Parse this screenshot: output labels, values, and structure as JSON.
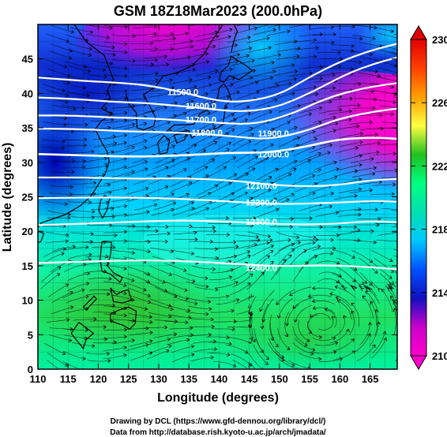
{
  "title": "GSM 18Z18Mar2023 (200.0hPa)",
  "xlabel": "Longitude (degrees)",
  "ylabel": "Latitude (degrees)",
  "x_ticks": [
    "110",
    "115",
    "120",
    "125",
    "130",
    "135",
    "140",
    "145",
    "150",
    "155",
    "160",
    "165"
  ],
  "y_ticks": [
    "0",
    "5",
    "10",
    "15",
    "20",
    "25",
    "30",
    "35",
    "40",
    "45"
  ],
  "colorbar": {
    "labels": [
      "210",
      "214",
      "218",
      "222",
      "226",
      "230"
    ],
    "colors": [
      "#ff00cc",
      "#cc00cc",
      "#1010c0",
      "#0050ff",
      "#00c8ff",
      "#00e0b0",
      "#00ff80",
      "#20c020",
      "#ffff40",
      "#ffa000",
      "#ff4000",
      "#e00000"
    ]
  },
  "contour_labels": [
    {
      "text": "11500.0",
      "lon": 134,
      "lat": 40.2
    },
    {
      "text": "11600.0",
      "lon": 137,
      "lat": 38.2
    },
    {
      "text": "11700.0",
      "lon": 137,
      "lat": 36.2
    },
    {
      "text": "11800.0",
      "lon": 138,
      "lat": 34.3
    },
    {
      "text": "11900.0",
      "lon": 149,
      "lat": 34.2
    },
    {
      "text": "12000.0",
      "lon": 149,
      "lat": 31.2
    },
    {
      "text": "12100.0",
      "lon": 147,
      "lat": 26.6
    },
    {
      "text": "12200.0",
      "lon": 147,
      "lat": 24.2
    },
    {
      "text": "12300.0",
      "lon": 147,
      "lat": 21.4
    },
    {
      "text": "12400.0",
      "lon": 147,
      "lat": 14.7
    }
  ],
  "footer": [
    "Drawing by DCL (https://www.gfd-dennou.org/library/dcl/)",
    "Data from http://database.rish.kyoto-u.ac.jp/arch/jmadata/"
  ]
}
